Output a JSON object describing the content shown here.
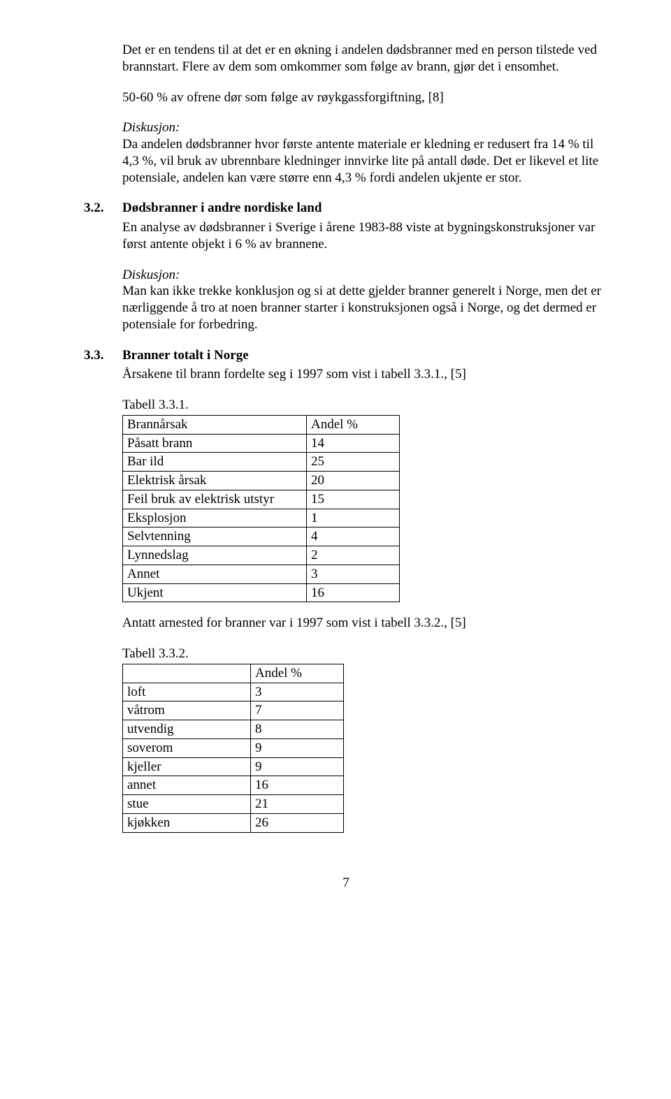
{
  "intro": {
    "p1": "Det er en tendens til at det er en økning i andelen dødsbranner med en person tilstede ved brannstart. Flere av dem som omkommer som følge av brann, gjør det i ensomhet.",
    "p2": "50-60 % av ofrene dør som følge av røykgassforgiftning, [8]",
    "disk_label": "Diskusjon:",
    "disk_body": "Da andelen dødsbranner hvor første antente materiale er kledning er redusert fra 14 % til 4,3 %, vil bruk av ubrennbare kledninger innvirke lite på antall døde. Det er likevel et lite potensiale, andelen kan være større enn 4,3 % fordi andelen ukjente er stor."
  },
  "s32": {
    "num": "3.2.",
    "title": "Dødsbranner i andre nordiske land",
    "body": "En analyse av dødsbranner i Sverige i årene 1983-88 viste at bygningskonstruksjoner var først antente objekt i 6 % av brannene.",
    "disk_label": "Diskusjon:",
    "disk_body": "Man kan ikke trekke konklusjon og si at dette gjelder branner generelt i Norge, men det er nærliggende å tro at noen branner starter i konstruksjonen også i Norge, og det dermed er potensiale for forbedring."
  },
  "s33": {
    "num": "3.3.",
    "title": "Branner totalt i Norge",
    "intro": "Årsakene til brann fordelte seg i 1997 som vist i tabell 3.3.1., [5]",
    "t1_caption": "Tabell 3.3.1.",
    "t1_header_c1": "Brannårsak",
    "t1_header_c2": "Andel %",
    "t1_rows": [
      {
        "c1": "Påsatt brann",
        "c2": "14"
      },
      {
        "c1": "Bar ild",
        "c2": "25"
      },
      {
        "c1": "Elektrisk årsak",
        "c2": "20"
      },
      {
        "c1": "Feil bruk av elektrisk utstyr",
        "c2": "15"
      },
      {
        "c1": "Eksplosjon",
        "c2": "1"
      },
      {
        "c1": "Selvtenning",
        "c2": "4"
      },
      {
        "c1": "Lynnedslag",
        "c2": "2"
      },
      {
        "c1": "Annet",
        "c2": "3"
      },
      {
        "c1": "Ukjent",
        "c2": "16"
      }
    ],
    "between": "Antatt arnested for branner var i 1997 som vist i tabell 3.3.2., [5]",
    "t2_caption": "Tabell 3.3.2.",
    "t2_header_c1": "",
    "t2_header_c2": "Andel %",
    "t2_rows": [
      {
        "c1": "loft",
        "c2": "3"
      },
      {
        "c1": "våtrom",
        "c2": "7"
      },
      {
        "c1": "utvendig",
        "c2": "8"
      },
      {
        "c1": "soverom",
        "c2": "9"
      },
      {
        "c1": "kjeller",
        "c2": "9"
      },
      {
        "c1": "annet",
        "c2": "16"
      },
      {
        "c1": "stue",
        "c2": "21"
      },
      {
        "c1": "kjøkken",
        "c2": "26"
      }
    ]
  },
  "page_number": "7"
}
